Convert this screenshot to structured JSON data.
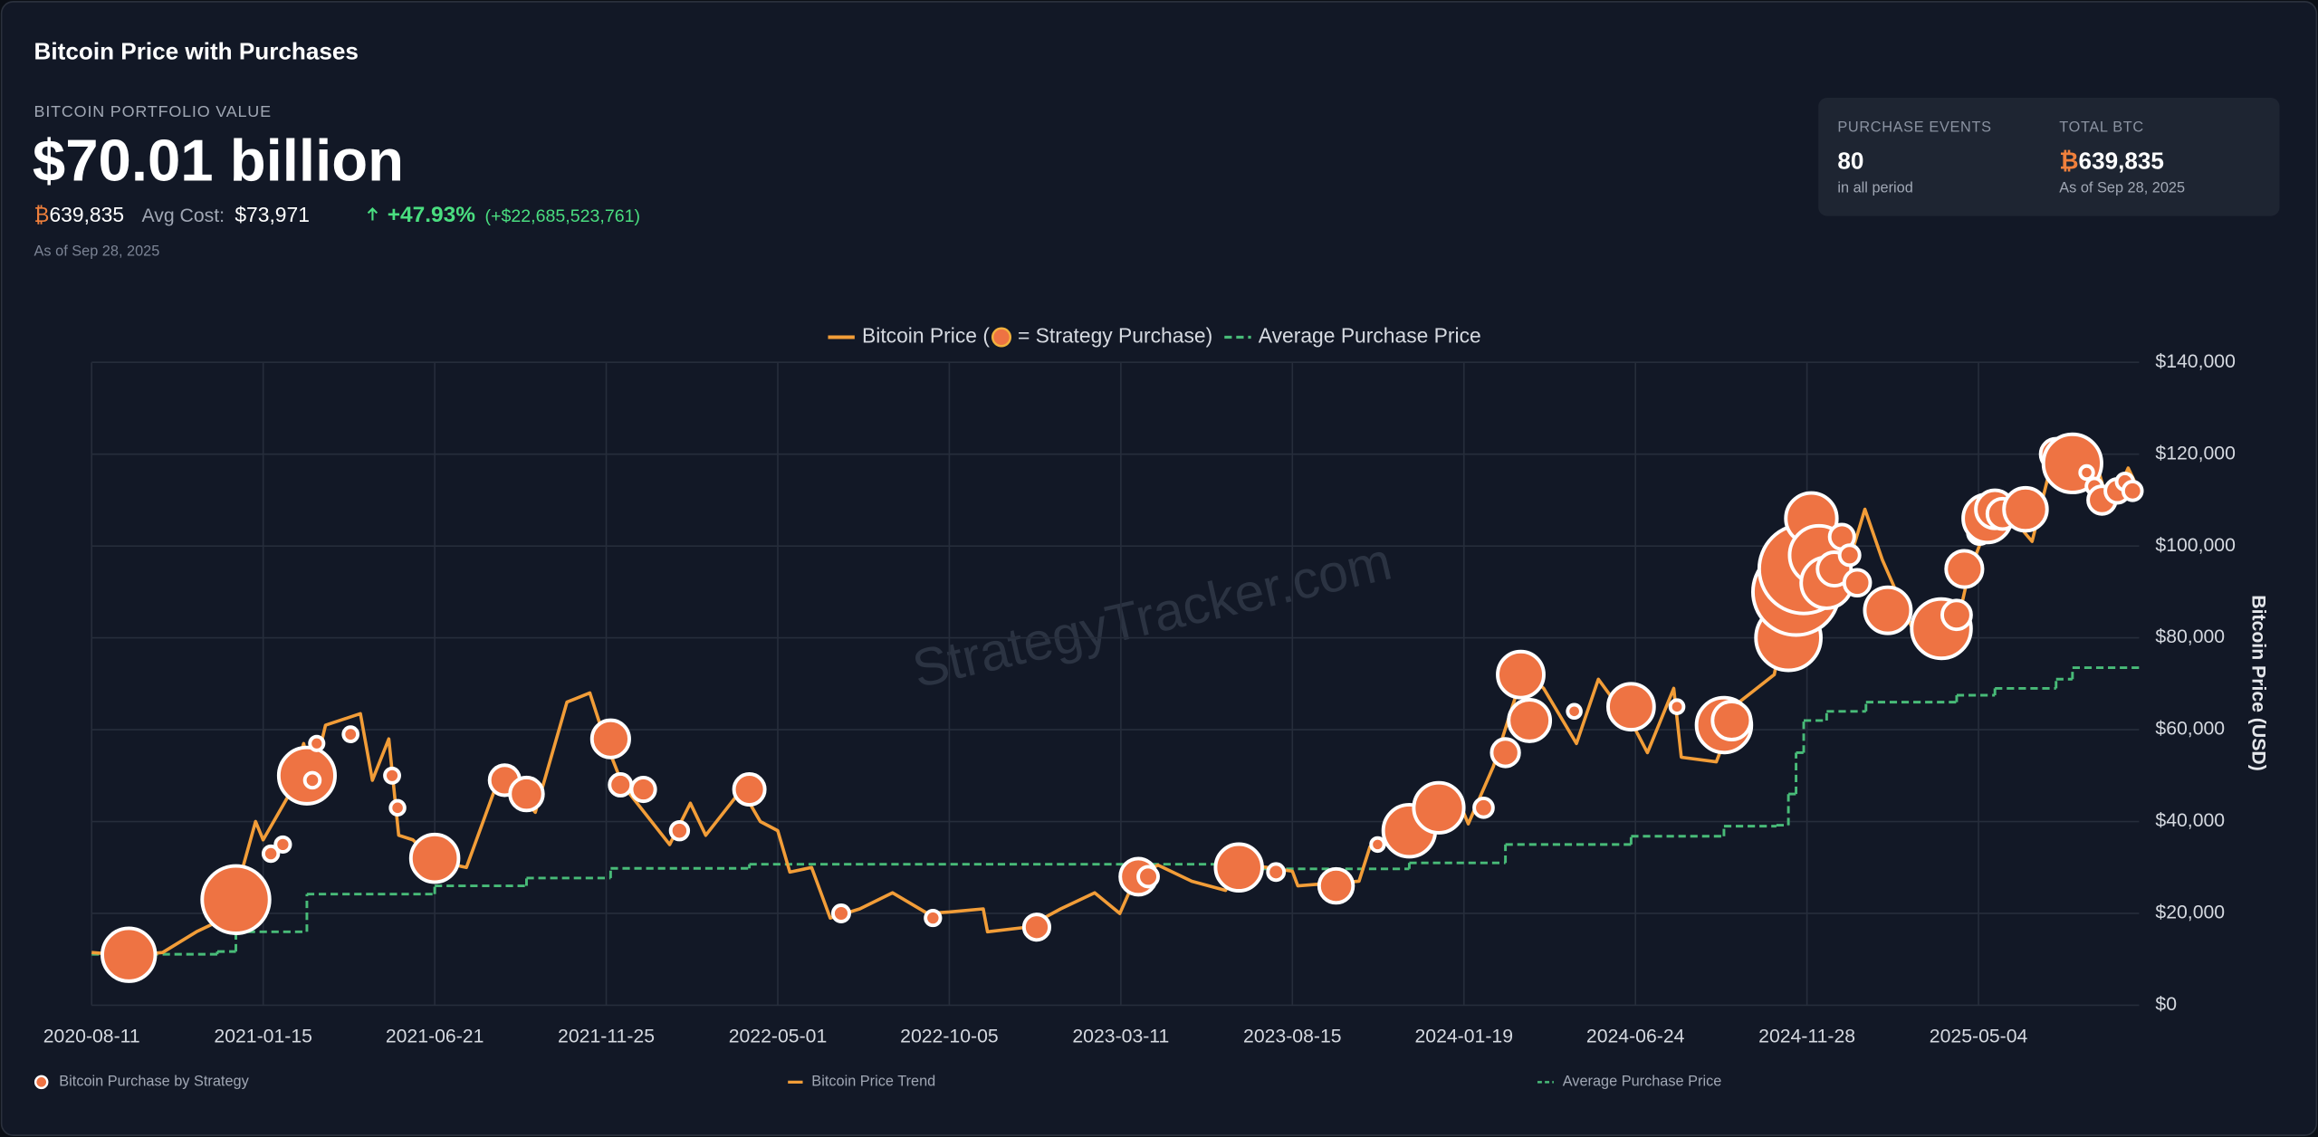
{
  "header": {
    "title": "Bitcoin Price with Purchases",
    "portfolio_label": "BITCOIN PORTFOLIO VALUE",
    "portfolio_value": "$70.01 billion",
    "btc_symbol": "₿",
    "btc_holdings": "639,835",
    "avg_cost_label": "Avg Cost:",
    "avg_cost": "$73,971",
    "change_pct": "+47.93%",
    "change_abs": "(+$22,685,523,761)",
    "as_of": "As of Sep 28, 2025"
  },
  "stats": [
    {
      "label": "PURCHASE EVENTS",
      "value": "80",
      "note": "in all period"
    },
    {
      "label": "TOTAL BTC",
      "prefix": "₿",
      "value": "639,835",
      "note": "As of Sep 28, 2025"
    }
  ],
  "chart_data": {
    "type": "line",
    "watermark": "StrategyTracker.com",
    "legend_price_prefix": "Bitcoin Price (",
    "legend_price_suffix": "= Strategy Purchase)",
    "ylabel": "Bitcoin Price (USD)",
    "xlim": [
      "2020-08-11",
      "2025-09-28"
    ],
    "xticks": [
      "2020-08-11",
      "2021-01-15",
      "2021-06-21",
      "2021-11-25",
      "2022-05-01",
      "2022-10-05",
      "2023-03-11",
      "2023-08-15",
      "2024-01-19",
      "2024-06-24",
      "2024-11-28",
      "2025-05-04"
    ],
    "ylim": [
      0,
      140000
    ],
    "yticks": [
      {
        "value": 0,
        "label": "$0"
      },
      {
        "value": 20000,
        "label": "$20,000"
      },
      {
        "value": 40000,
        "label": "$40,000"
      },
      {
        "value": 60000,
        "label": "$60,000"
      },
      {
        "value": 80000,
        "label": "$80,000"
      },
      {
        "value": 100000,
        "label": "$100,000"
      },
      {
        "value": 120000,
        "label": "$120,000"
      },
      {
        "value": 140000,
        "label": "$140,000"
      }
    ],
    "grid": true,
    "series": [
      {
        "name": "Bitcoin Purchase by Strategy",
        "type": "bubble",
        "color": "#ee7343",
        "x": [
          "2020-09-14",
          "2020-12-21",
          "2021-01-22",
          "2021-02-02",
          "2021-02-24",
          "2021-03-01",
          "2021-03-05",
          "2021-04-05",
          "2021-05-13",
          "2021-05-18",
          "2021-06-21",
          "2021-08-24",
          "2021-09-13",
          "2021-11-29",
          "2021-12-08",
          "2021-12-29",
          "2022-01-31",
          "2022-04-05",
          "2022-06-28",
          "2022-09-20",
          "2022-12-24",
          "2023-03-27",
          "2023-04-05",
          "2023-06-27",
          "2023-07-31",
          "2023-09-24",
          "2023-11-01",
          "2023-11-30",
          "2023-12-27",
          "2024-02-06",
          "2024-02-26",
          "2024-03-11",
          "2024-03-19",
          "2024-04-29",
          "2024-06-20",
          "2024-08-01",
          "2024-09-13",
          "2024-09-20",
          "2024-11-11",
          "2024-11-18",
          "2024-11-25",
          "2024-12-02",
          "2024-12-09",
          "2024-12-16",
          "2024-12-23",
          "2024-12-30",
          "2025-01-06",
          "2025-01-13",
          "2025-02-10",
          "2025-03-31",
          "2025-04-14",
          "2025-04-21",
          "2025-05-05",
          "2025-05-12",
          "2025-05-19",
          "2025-05-26",
          "2025-06-16",
          "2025-07-14",
          "2025-07-29",
          "2025-08-11",
          "2025-08-18",
          "2025-08-25",
          "2025-09-08",
          "2025-09-15",
          "2025-09-22"
        ],
        "values": [
          11000,
          23000,
          33000,
          35000,
          50000,
          49000,
          57000,
          59000,
          50000,
          43000,
          32000,
          49000,
          46000,
          58000,
          48000,
          47000,
          38000,
          47000,
          20000,
          19000,
          17000,
          28000,
          28000,
          30000,
          29000,
          26000,
          35000,
          38000,
          43000,
          43000,
          55000,
          72000,
          62000,
          64000,
          65000,
          65000,
          61000,
          62000,
          80000,
          90000,
          95000,
          106000,
          98000,
          92000,
          95000,
          102000,
          98000,
          92000,
          86000,
          82000,
          85000,
          95000,
          103000,
          106000,
          108000,
          107000,
          108000,
          120000,
          118000,
          116000,
          113000,
          110000,
          112000,
          114000,
          112000
        ],
        "sizes": [
          16796,
          29646,
          314,
          295,
          19452,
          328,
          205,
          253,
          271,
          229,
          13005,
          3907,
          5050,
          7002,
          1434,
          1914,
          660,
          4167,
          480,
          301,
          2395,
          6455,
          1045,
          12333,
          467,
          5445,
          155,
          16130,
          14620,
          850,
          3000,
          12000,
          9245,
          164,
          11931,
          169,
          18300,
          7420,
          27200,
          51780,
          55500,
          15400,
          21550,
          15350,
          5262,
          2138,
          1070,
          2530,
          12000,
          22048,
          3459,
          6556,
          1895,
          13390,
          7390,
          4020,
          10100,
          4225,
          21021,
          155,
          430,
          3081,
          1955,
          525,
          850
        ]
      },
      {
        "name": "Bitcoin Price Trend",
        "type": "line",
        "color": "#f29d38",
        "x": [
          "2020-08-11",
          "2020-09-15",
          "2020-10-15",
          "2020-11-15",
          "2020-12-15",
          "2021-01-08",
          "2021-01-15",
          "2021-02-08",
          "2021-02-21",
          "2021-03-01",
          "2021-03-13",
          "2021-04-14",
          "2021-04-25",
          "2021-05-10",
          "2021-05-19",
          "2021-06-01",
          "2021-06-21",
          "2021-07-20",
          "2021-08-15",
          "2021-09-07",
          "2021-09-21",
          "2021-10-20",
          "2021-11-10",
          "2021-11-25",
          "2021-12-10",
          "2022-01-22",
          "2022-02-10",
          "2022-02-24",
          "2022-03-29",
          "2022-04-15",
          "2022-05-01",
          "2022-05-12",
          "2022-06-01",
          "2022-06-18",
          "2022-07-15",
          "2022-08-14",
          "2022-09-15",
          "2022-10-05",
          "2022-11-05",
          "2022-11-09",
          "2022-12-15",
          "2023-01-15",
          "2023-02-15",
          "2023-03-10",
          "2023-03-25",
          "2023-04-14",
          "2023-05-15",
          "2023-06-15",
          "2023-06-23",
          "2023-07-15",
          "2023-08-15",
          "2023-08-20",
          "2023-09-15",
          "2023-10-15",
          "2023-10-25",
          "2023-11-15",
          "2023-12-08",
          "2024-01-11",
          "2024-01-23",
          "2024-02-15",
          "2024-03-14",
          "2024-04-01",
          "2024-05-01",
          "2024-05-21",
          "2024-06-24",
          "2024-07-05",
          "2024-07-29",
          "2024-08-05",
          "2024-09-06",
          "2024-09-27",
          "2024-10-29",
          "2024-11-12",
          "2024-11-22",
          "2024-12-17",
          "2025-01-01",
          "2025-01-20",
          "2025-02-05",
          "2025-03-10",
          "2025-04-08",
          "2025-04-25",
          "2025-05-21",
          "2025-06-22",
          "2025-07-14",
          "2025-08-02",
          "2025-08-14",
          "2025-09-01",
          "2025-09-18",
          "2025-09-28"
        ],
        "values": [
          11500,
          10800,
          11500,
          16000,
          19400,
          40000,
          36000,
          46000,
          57000,
          49000,
          61000,
          63500,
          49000,
          58000,
          37000,
          36000,
          31500,
          30000,
          47000,
          46000,
          42000,
          66000,
          68000,
          57000,
          48000,
          35000,
          44000,
          37000,
          47000,
          40000,
          38000,
          29000,
          30000,
          19000,
          21000,
          24500,
          20000,
          20300,
          21000,
          16000,
          17000,
          21000,
          24500,
          20000,
          28000,
          30500,
          27000,
          25000,
          30500,
          30300,
          29200,
          26000,
          26500,
          27000,
          34500,
          37000,
          44000,
          46500,
          39500,
          52000,
          73000,
          69000,
          57000,
          71000,
          60000,
          55000,
          69000,
          54000,
          53000,
          66000,
          72000,
          89000,
          99000,
          106000,
          93000,
          108000,
          97000,
          79000,
          76000,
          94000,
          110000,
          101000,
          122000,
          113000,
          123000,
          108000,
          117000,
          112000
        ]
      },
      {
        "name": "Average Purchase Price",
        "type": "step",
        "color": "#48bb78",
        "x": [
          "2020-08-11",
          "2020-12-04",
          "2020-12-21",
          "2021-02-24",
          "2021-06-21",
          "2021-09-13",
          "2021-11-29",
          "2022-04-05",
          "2023-06-27",
          "2023-11-30",
          "2024-02-26",
          "2024-06-20",
          "2024-09-13",
          "2024-10-31",
          "2024-11-11",
          "2024-11-18",
          "2024-11-25",
          "2024-12-16",
          "2025-01-21",
          "2025-04-14",
          "2025-05-19",
          "2025-07-14",
          "2025-07-29"
        ],
        "values": [
          11100,
          11700,
          16000,
          24200,
          26000,
          27700,
          29800,
          30700,
          29700,
          31000,
          35000,
          36800,
          39000,
          39200,
          46000,
          55000,
          62000,
          64000,
          66000,
          67500,
          69000,
          71000,
          73500
        ]
      }
    ]
  }
}
